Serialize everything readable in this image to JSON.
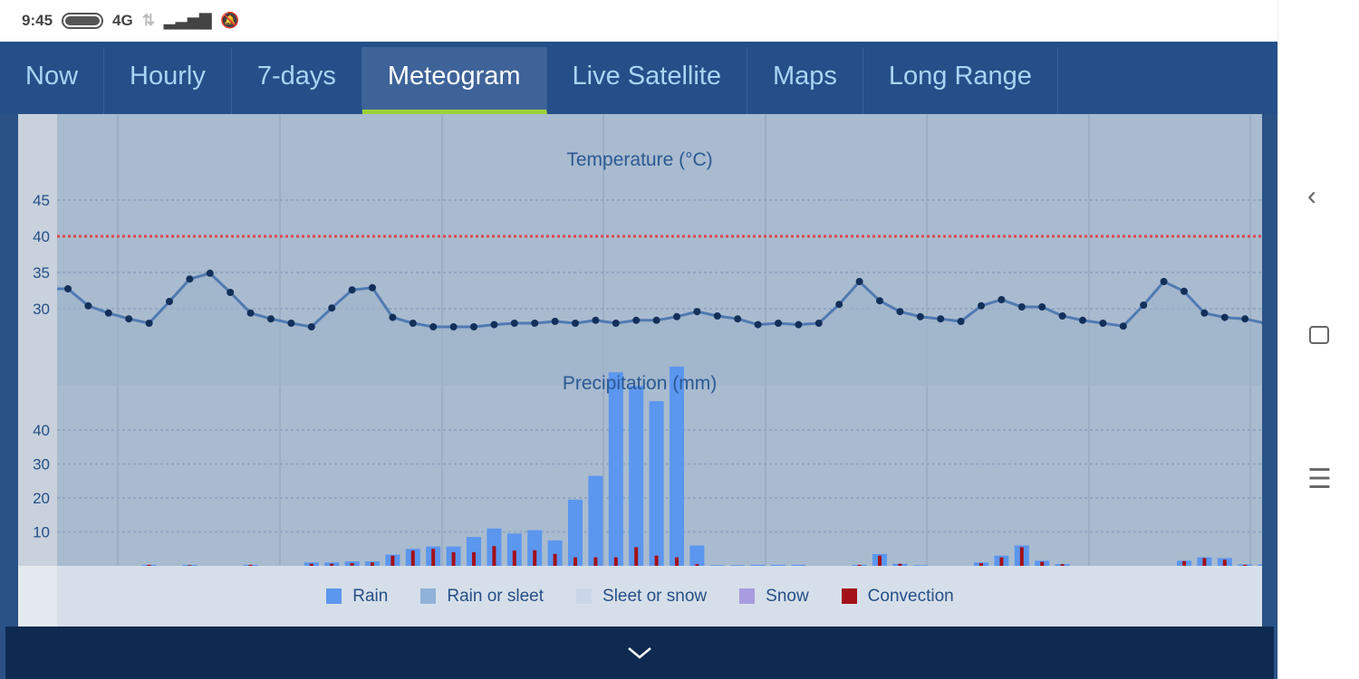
{
  "status": {
    "time": "9:45",
    "network": "4G"
  },
  "tabs": [
    "Now",
    "Hourly",
    "7-days",
    "Meteogram",
    "Live Satellite",
    "Maps",
    "Long Range"
  ],
  "active_tab": 3,
  "legend": [
    {
      "label": "Rain",
      "color": "#5b96ef"
    },
    {
      "label": "Rain or sleet",
      "color": "#8fb2d9"
    },
    {
      "label": "Sleet or snow",
      "color": "#c9d6ea"
    },
    {
      "label": "Snow",
      "color": "#a89be0"
    },
    {
      "label": "Convection",
      "color": "#a3101a"
    }
  ],
  "chart_data": [
    {
      "type": "line",
      "title": "Temperature (°C)",
      "ylabel": "",
      "yticks": [
        30,
        35,
        40,
        45
      ],
      "threshold": 40,
      "threshold_color": "#e0474f",
      "values": [
        32.75,
        30.4,
        29.4,
        28.6,
        28,
        31,
        34.1,
        34.9,
        32.25,
        29.4,
        28.6,
        28,
        27.5,
        30.1,
        32.6,
        32.9,
        28.8,
        28,
        27.5,
        27.5,
        27.5,
        27.8,
        28,
        28,
        28.25,
        28,
        28.4,
        28,
        28.4,
        28.4,
        28.9,
        29.6,
        29,
        28.6,
        27.8,
        28,
        27.8,
        28,
        30.6,
        33.75,
        31.1,
        29.6,
        28.9,
        28.6,
        28.25,
        30.4,
        31.25,
        30.25,
        30.25,
        29,
        28.4,
        28,
        27.6,
        30.5,
        33.75,
        32.4,
        29.4,
        28.8,
        28.6,
        28
      ]
    },
    {
      "type": "bar",
      "title": "Precipitation (mm)",
      "yticks": [
        10,
        20,
        30,
        40
      ],
      "series": [
        {
          "name": "Rain",
          "values": [
            0,
            0,
            0,
            0,
            0.3,
            0,
            0.3,
            0,
            0,
            0.3,
            0,
            0,
            1,
            1,
            1.3,
            1.3,
            3.3,
            5,
            5.7,
            5.7,
            8.5,
            11,
            9.5,
            10.5,
            7.5,
            19.5,
            26.5,
            57,
            53,
            48.5,
            58.7,
            6,
            0.2,
            0.2,
            0.3,
            0.3,
            0.3,
            0,
            0,
            0.3,
            3.5,
            0.6,
            0.2,
            0,
            0,
            1,
            3,
            6,
            1.5,
            0.5,
            0,
            0,
            0,
            0,
            0,
            1.5,
            2.5,
            2.3,
            0.4,
            0.4
          ]
        },
        {
          "name": "Convection",
          "values": [
            0,
            0,
            0,
            0,
            0.3,
            0,
            0.2,
            0,
            0,
            0.3,
            0,
            0,
            0.6,
            0.6,
            0.8,
            1,
            3,
            4.5,
            5,
            4,
            4,
            5.8,
            4.5,
            4.6,
            3.5,
            2.5,
            2.5,
            2.5,
            5.5,
            3,
            2.5,
            0.5,
            0,
            0,
            0,
            0,
            0,
            0,
            0,
            0.3,
            3,
            0.6,
            0,
            0,
            0,
            0.8,
            2.5,
            5.5,
            1.2,
            0.5,
            0,
            0,
            0,
            0,
            0,
            1.4,
            2.3,
            1.8,
            0.3,
            0.3
          ]
        }
      ]
    }
  ]
}
